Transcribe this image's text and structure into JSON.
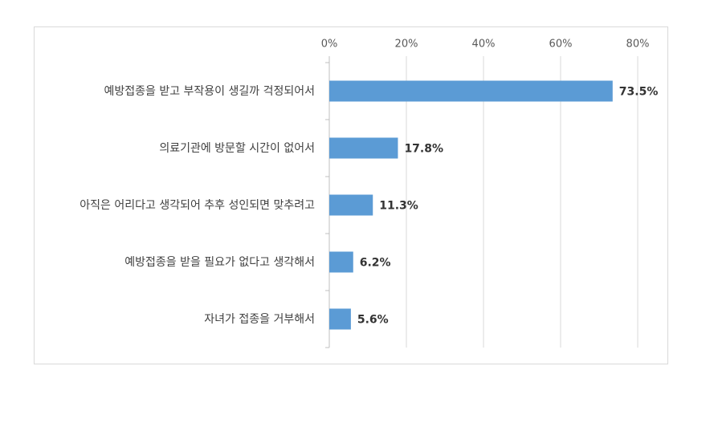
{
  "chart_data": {
    "type": "bar",
    "orientation": "horizontal",
    "categories": [
      "예방접종을 받고 부작용이 생길까 걱정되어서",
      "의료기관에 방문할 시간이 없어서",
      "아직은 어리다고 생각되어 추후 성인되면 맞추려고",
      "예방접종을 받을 필요가 없다고 생각해서",
      "자녀가 접종을 거부해서"
    ],
    "values": [
      73.5,
      17.8,
      11.3,
      6.2,
      5.6
    ],
    "value_labels": [
      "73.5%",
      "17.8%",
      "11.3%",
      "6.2%",
      "5.6%"
    ],
    "color": "#5b9bd5",
    "xlim": [
      0,
      80
    ],
    "xticks": [
      {
        "value": 0,
        "label": "0%"
      },
      {
        "value": 20,
        "label": "20%"
      },
      {
        "value": 40,
        "label": "40%"
      },
      {
        "value": 60,
        "label": "60%"
      },
      {
        "value": 80,
        "label": "80%"
      }
    ],
    "grid": true
  }
}
